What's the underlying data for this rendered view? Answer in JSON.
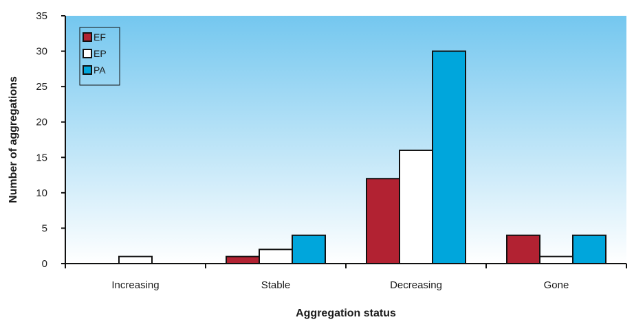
{
  "chart_data": {
    "type": "bar",
    "title": "",
    "xlabel": "Aggregation status",
    "ylabel": "Number of aggregations",
    "categories": [
      "Increasing",
      "Stable",
      "Decreasing",
      "Gone"
    ],
    "series": [
      {
        "name": "EF",
        "color": "#b22232",
        "values": [
          0,
          1,
          12,
          4
        ]
      },
      {
        "name": "EP",
        "color": "#ffffff",
        "values": [
          1,
          2,
          16,
          1
        ]
      },
      {
        "name": "PA",
        "color": "#00a6dc",
        "values": [
          0,
          4,
          30,
          4
        ]
      }
    ],
    "ylim": [
      0,
      35
    ],
    "yticks": [
      0,
      5,
      10,
      15,
      20,
      25,
      30,
      35
    ],
    "grid": false,
    "legend": "top-left",
    "plot_background": {
      "top": "#74c7ef",
      "bottom": "#ffffff"
    }
  }
}
